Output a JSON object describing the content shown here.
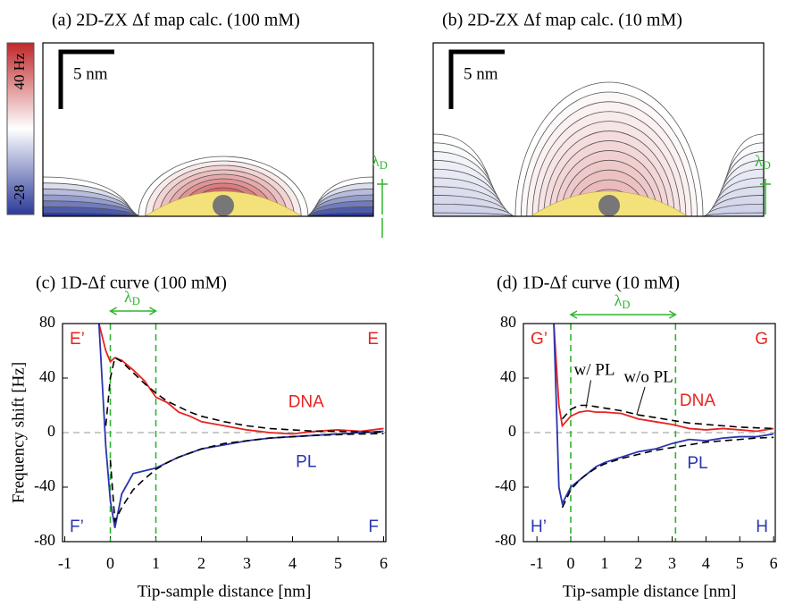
{
  "chart_data": [
    {
      "type": "map",
      "title": "(a) 2D-ZX Δf map calc. (100 mM)",
      "scale_bar": "5 nm",
      "annotation": {
        "symbol": "λ",
        "subscript": "D"
      },
      "colorbar": {
        "colors": [
          "#c0282a",
          "#ffffff",
          "#2b3a9a"
        ],
        "ticks": [
          {
            "value": 40,
            "label": "40 Hz"
          },
          {
            "value": -28,
            "label": "-28"
          }
        ]
      }
    },
    {
      "type": "map",
      "title": "(b) 2D-ZX Δf map calc. (10 mM)",
      "scale_bar": "5 nm",
      "annotation": {
        "symbol": "λ",
        "subscript": "D"
      }
    },
    {
      "type": "line",
      "title": "(c) 1D-Δf curve (100 mM)",
      "xlabel": "Tip-sample distance [nm]",
      "ylabel": "Frequency shift [Hz]",
      "xlim": [
        -1.05,
        6.05
      ],
      "ylim": [
        -80,
        80
      ],
      "xticks": [
        -1,
        0,
        1,
        2,
        3,
        4,
        5,
        6
      ],
      "yticks": [
        80,
        40,
        0,
        -40,
        -80
      ],
      "x": [
        -0.25,
        -0.1,
        0,
        0.1,
        0.25,
        0.5,
        0.75,
        1,
        1.25,
        1.5,
        1.75,
        2,
        2.5,
        3,
        3.5,
        4,
        4.5,
        5,
        5.5,
        6
      ],
      "series": [
        {
          "name": "DNA",
          "color": "#e8231f",
          "values": [
            80,
            60,
            52,
            55,
            53,
            46,
            38,
            26,
            22,
            15,
            12,
            8,
            5,
            2,
            0,
            -1,
            1,
            2,
            1,
            3
          ]
        },
        {
          "name": "PL",
          "color": "#2a35b0",
          "values": [
            80,
            -10,
            -50,
            -70,
            -45,
            -30,
            -28,
            -26,
            -22,
            -18,
            -15,
            -12,
            -9,
            -6,
            -4,
            -3,
            -2,
            -1,
            0,
            1
          ]
        },
        {
          "color": "#000000",
          "dashed": true,
          "values": [
            null,
            5,
            40,
            55,
            52,
            44,
            36,
            29,
            23,
            19,
            15,
            12,
            8,
            5,
            3,
            2,
            1,
            1,
            0.5,
            0.3
          ]
        },
        {
          "color": "#000000",
          "dashed": true,
          "values": [
            null,
            null,
            -20,
            -65,
            -55,
            -42,
            -34,
            -27,
            -22,
            -18,
            -15,
            -12,
            -8,
            -6,
            -4,
            -3,
            -2,
            -1.5,
            -1,
            -0.7
          ]
        }
      ],
      "corner_labels": [
        "E’",
        "E",
        "F’",
        "F"
      ],
      "lambda_d": {
        "symbol": "λ",
        "subscript": "D",
        "from": 0,
        "to": 1,
        "color": "#2db52d"
      }
    },
    {
      "type": "line",
      "title": "(d) 1D-Δf curve (10 mM)",
      "xlabel": "Tip-sample distance [nm]",
      "xlim": [
        -1.4,
        6.05
      ],
      "ylim": [
        -80,
        80
      ],
      "xticks": [
        -1,
        0,
        1,
        2,
        3,
        4,
        5,
        6
      ],
      "yticks": [
        80,
        40,
        0,
        -40,
        -80
      ],
      "x": [
        -0.5,
        -0.35,
        -0.25,
        0,
        0.25,
        0.5,
        0.75,
        1,
        1.5,
        2,
        2.5,
        3,
        3.5,
        4,
        4.5,
        5,
        5.5,
        6
      ],
      "series": [
        {
          "name": "DNA",
          "color": "#e8231f",
          "values": [
            80,
            20,
            5,
            12,
            15,
            16,
            15,
            15,
            14,
            10,
            8,
            6,
            3,
            2,
            3,
            2,
            1,
            3
          ]
        },
        {
          "name": "PL",
          "color": "#2a35b0",
          "values": [
            80,
            -40,
            -52,
            -40,
            -35,
            -30,
            -25,
            -22,
            -18,
            -14,
            -12,
            -8,
            -5,
            -6,
            -4,
            -3,
            -3,
            -1
          ]
        },
        {
          "color": "#000000",
          "dashed": true,
          "values": [
            null,
            null,
            10,
            17,
            20,
            20,
            19,
            18,
            16,
            13,
            11,
            9,
            7,
            6,
            5,
            4,
            3.5,
            3
          ]
        },
        {
          "color": "#000000",
          "dashed": true,
          "values": [
            null,
            null,
            -55,
            -42,
            -35,
            -30,
            -26,
            -23,
            -19,
            -16,
            -13,
            -11,
            -9,
            -7,
            -6,
            -5,
            -4,
            -3.5
          ]
        }
      ],
      "corner_labels": [
        "G’",
        "G",
        "H’",
        "H"
      ],
      "annotations": [
        "w/ PL",
        "w/o PL"
      ],
      "lambda_d": {
        "symbol": "λ",
        "subscript": "D",
        "from": 0,
        "to": 3.1,
        "color": "#2db52d"
      }
    }
  ]
}
